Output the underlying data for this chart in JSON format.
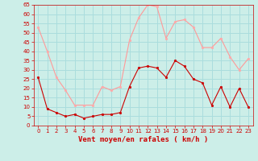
{
  "hours": [
    0,
    1,
    2,
    3,
    4,
    5,
    6,
    7,
    8,
    9,
    10,
    11,
    12,
    13,
    14,
    15,
    16,
    17,
    18,
    19,
    20,
    21,
    22,
    23
  ],
  "wind_avg": [
    26,
    9,
    7,
    5,
    6,
    4,
    5,
    6,
    6,
    7,
    21,
    31,
    32,
    31,
    26,
    35,
    32,
    25,
    23,
    11,
    21,
    10,
    20,
    10
  ],
  "wind_gust": [
    53,
    40,
    26,
    19,
    11,
    11,
    11,
    21,
    19,
    21,
    46,
    58,
    65,
    64,
    47,
    56,
    57,
    53,
    42,
    42,
    47,
    37,
    30,
    36
  ],
  "bg_color": "#cceee8",
  "grid_color": "#aadddd",
  "line_avg_color": "#cc0000",
  "line_gust_color": "#ff9999",
  "marker_color_avg": "#cc0000",
  "marker_color_gust": "#ffaaaa",
  "xlabel": "Vent moyen/en rafales ( km/h )",
  "xlabel_color": "#cc0000",
  "tick_color": "#cc0000",
  "ylim": [
    0,
    65
  ],
  "yticks": [
    0,
    5,
    10,
    15,
    20,
    25,
    30,
    35,
    40,
    45,
    50,
    55,
    60,
    65
  ],
  "xlim": [
    -0.5,
    23.5
  ]
}
